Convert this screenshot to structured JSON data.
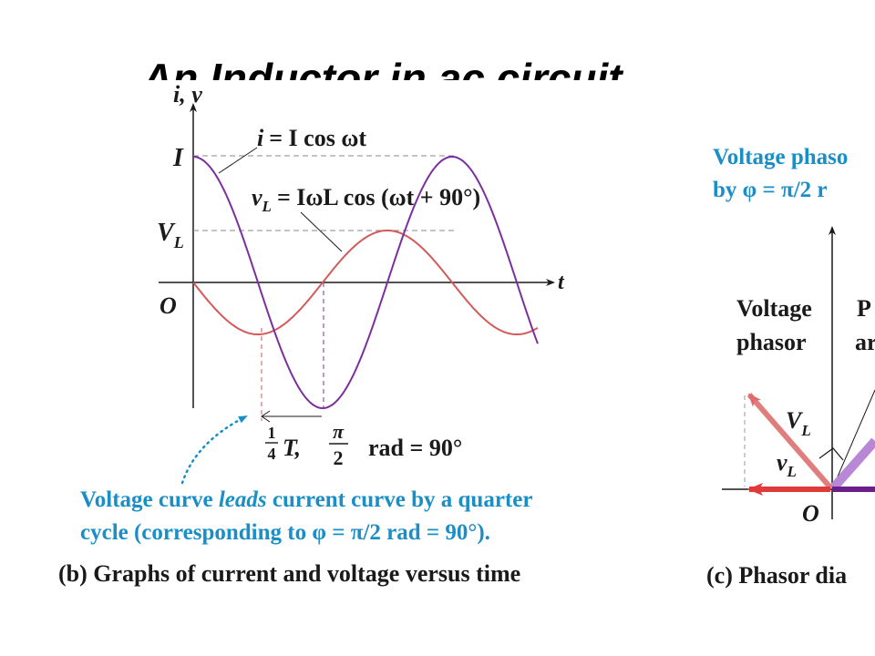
{
  "slide": {
    "title": "An Inductor in ac circuit"
  },
  "graph_b": {
    "y_axis_label": "i, v",
    "x_axis_label": "t",
    "tick_I": "I",
    "tick_VL": "V",
    "tick_VL_sub": "L",
    "origin_label": "O",
    "current_eq_lhs": "i",
    "current_eq_rhs": "= I cos ωt",
    "voltage_eq_v": "v",
    "voltage_eq_sub": "L",
    "voltage_eq_rhs": "= IωL cos (ωt + 90°)",
    "quarter_frac_num": "1",
    "quarter_frac_den": "4",
    "quarter_T": "T,",
    "pi_num": "π",
    "pi_den": "2",
    "rad_text": "rad = 90°",
    "note_line1_a": "Voltage curve ",
    "note_line1_leads": "leads",
    "note_line1_b": " current curve by a quarter",
    "note_line2": "cycle (corresponding to φ = π/2 rad = 90°).",
    "caption": "(b) Graphs of current and voltage versus time",
    "colors": {
      "current": "#7b2f9e",
      "voltage": "#d45a5a",
      "note": "#1a8fc7",
      "axis": "#1a1a1a"
    }
  },
  "graph_c": {
    "heading_line1": "Voltage phaso",
    "heading_line2": "by φ = π/2 r",
    "voltage_label": "Voltage",
    "phasor_label": "phasor",
    "partial_p": "P",
    "partial_ar": "ar",
    "VL_label": "V",
    "VL_sub": "L",
    "vL_label": "v",
    "vL_sub": "L",
    "origin_label": "O",
    "caption": "(c) Phasor dia",
    "colors": {
      "voltage_phasor": "#d45a5a",
      "current_phasor": "#a66fc6",
      "axis": "#1a1a1a"
    }
  }
}
